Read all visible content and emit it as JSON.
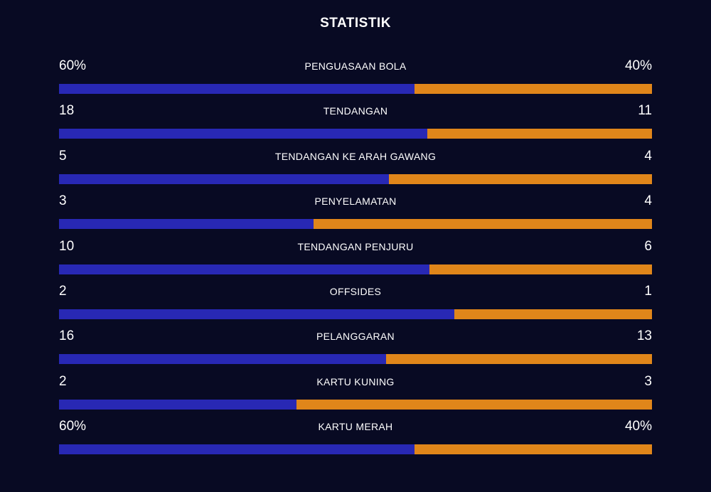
{
  "title": "STATISTIK",
  "colors": {
    "background": "#080a23",
    "home_bar": "#2828b4",
    "away_bar": "#e0861a",
    "text": "#ffffff"
  },
  "stats": [
    {
      "label": "PENGUASAAN BOLA",
      "home": "60%",
      "away": "40%",
      "home_share": 0.6
    },
    {
      "label": "TENDANGAN",
      "home": "18",
      "away": "11",
      "home_share": 0.621
    },
    {
      "label": "TENDANGAN KE ARAH GAWANG",
      "home": "5",
      "away": "4",
      "home_share": 0.556
    },
    {
      "label": "PENYELAMATAN",
      "home": "3",
      "away": "4",
      "home_share": 0.429
    },
    {
      "label": "TENDANGAN PENJURU",
      "home": "10",
      "away": "6",
      "home_share": 0.625
    },
    {
      "label": "OFFSIDES",
      "home": "2",
      "away": "1",
      "home_share": 0.667
    },
    {
      "label": "PELANGGARAN",
      "home": "16",
      "away": "13",
      "home_share": 0.552
    },
    {
      "label": "KARTU KUNING",
      "home": "2",
      "away": "3",
      "home_share": 0.4
    },
    {
      "label": "KARTU MERAH",
      "home": "60%",
      "away": "40%",
      "home_share": 0.6
    }
  ]
}
